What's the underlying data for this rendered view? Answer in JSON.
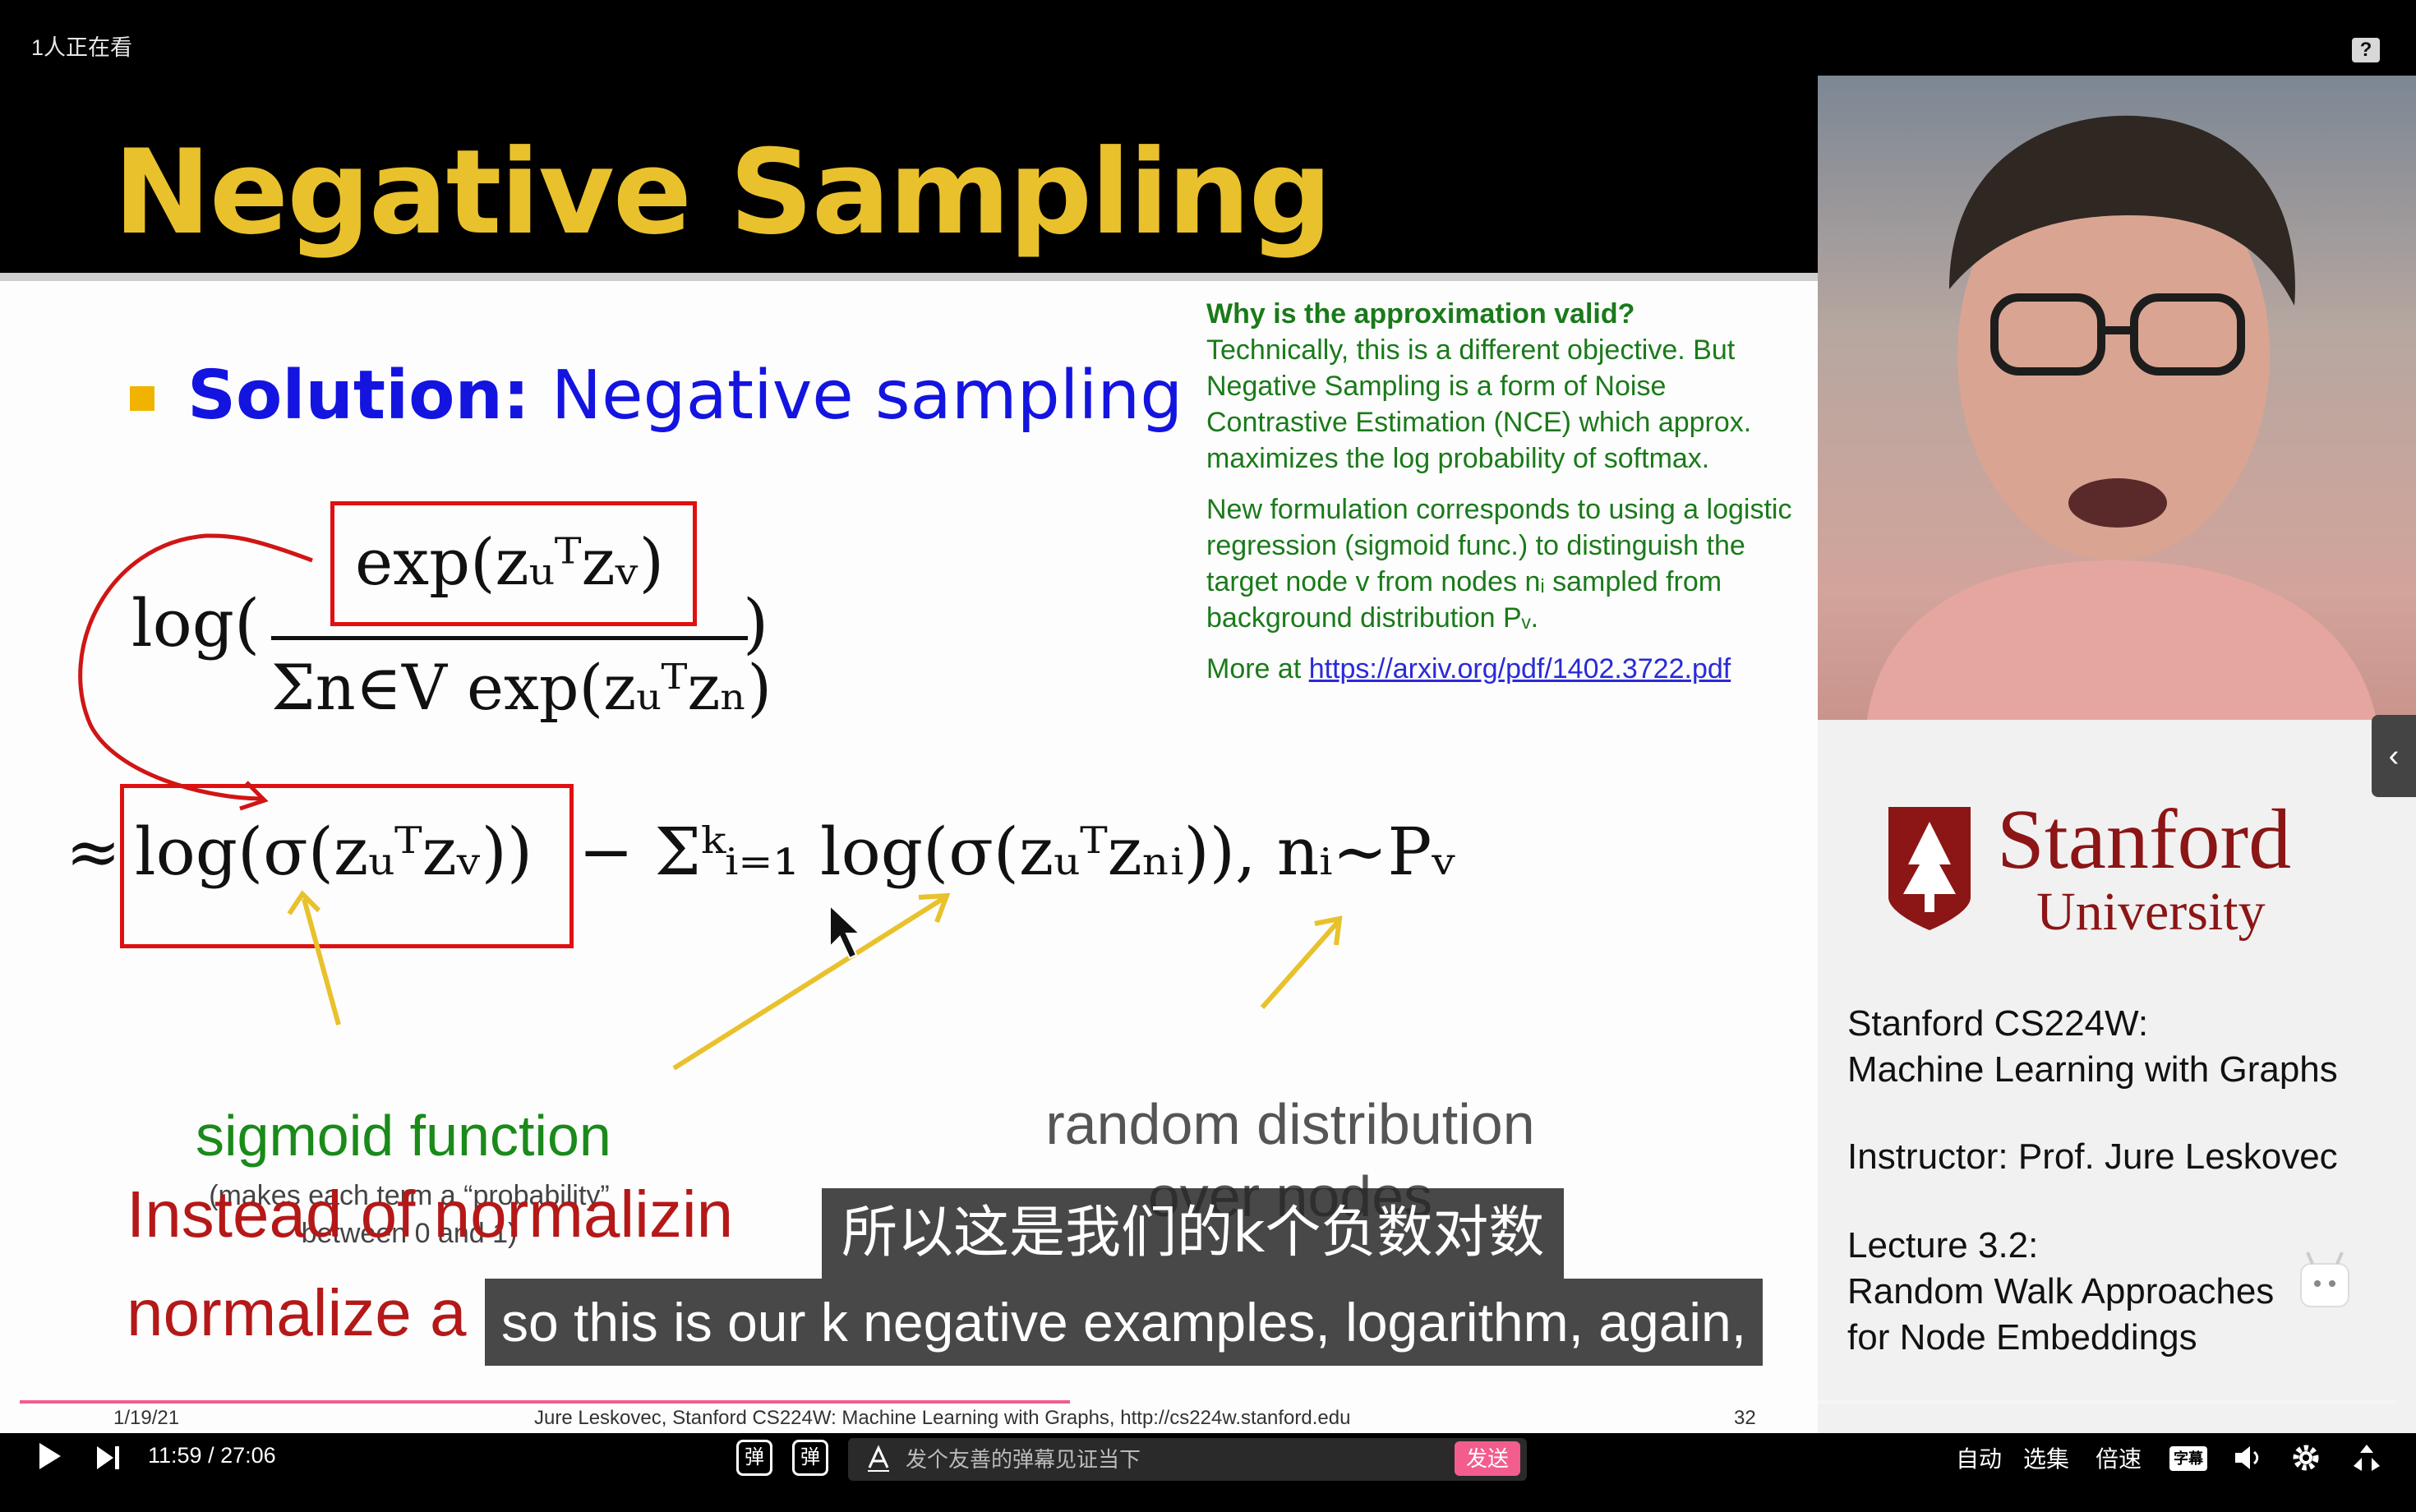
{
  "top_bar": {
    "viewers": "1人正在看",
    "help": "?"
  },
  "slide": {
    "title": "Negative Sampling",
    "solution_bold": "Solution:",
    "solution_rest": " Negative sampling",
    "note": {
      "question": "Why is the approximation valid?",
      "para1": "Technically, this is a different objective. But Negative Sampling is a form of Noise Contrastive Estimation (NCE) which approx. maximizes the log probability of softmax.",
      "para2": "New formulation corresponds to using a logistic regression (sigmoid func.) to distinguish the target node v from nodes nᵢ sampled from background distribution Pᵥ.",
      "more_prefix": "More at ",
      "link": "https://arxiv.org/pdf/1402.3722.pdf"
    },
    "eq1": {
      "log_open": "log(",
      "numerator": "exp(zᵤᵀzᵥ)",
      "denominator": "Σn∈V exp(zᵤᵀzₙ)",
      "close": ")"
    },
    "eq2": {
      "approx": "≈",
      "boxed": "log(σ(zᵤᵀzᵥ))",
      "rest": "− Σᵏᵢ₌₁ log(σ(zᵤᵀzₙᵢ)), nᵢ~Pᵥ"
    },
    "sigmoid_label": "sigmoid function",
    "sigmoid_note_1": "(makes each term a “probability”",
    "sigmoid_note_2": "between 0 and 1)",
    "random_label_1": "random distribution",
    "random_label_2": "over nodes",
    "red_line_1": "Instead of normalizin",
    "red_line_2": "normalize a",
    "footer_date": "1/19/21",
    "footer_credit": "Jure Leskovec, Stanford CS224W: Machine Learning with Graphs, http://cs224w.stanford.edu",
    "footer_page": "32"
  },
  "side": {
    "stanford": "Stanford",
    "university": "University",
    "course_1": "Stanford CS224W:",
    "course_2": "Machine Learning with Graphs",
    "instructor": "Instructor: Prof. Jure Leskovec",
    "lecture_1": "Lecture 3.2:",
    "lecture_2": "Random Walk Approaches",
    "lecture_3": "for Node Embeddings",
    "collapse": "‹"
  },
  "subtitles": {
    "cn": "所以这是我们的k个负数对数",
    "en": "so this is our k negative examples, logarithm, again,"
  },
  "player": {
    "current_time": "11:59",
    "separator": " / ",
    "duration": "27:06",
    "progress_fraction": 0.442,
    "danmaku_toggle": "弹",
    "danmaku_settings": "弹",
    "danmaku_placeholder": "发个友善的弹幕见证当下",
    "send": "发送",
    "auto": "自动",
    "episodes": "选集",
    "speed": "倍速",
    "subtitle_btn": "字幕",
    "accent": "#f25d8e"
  }
}
